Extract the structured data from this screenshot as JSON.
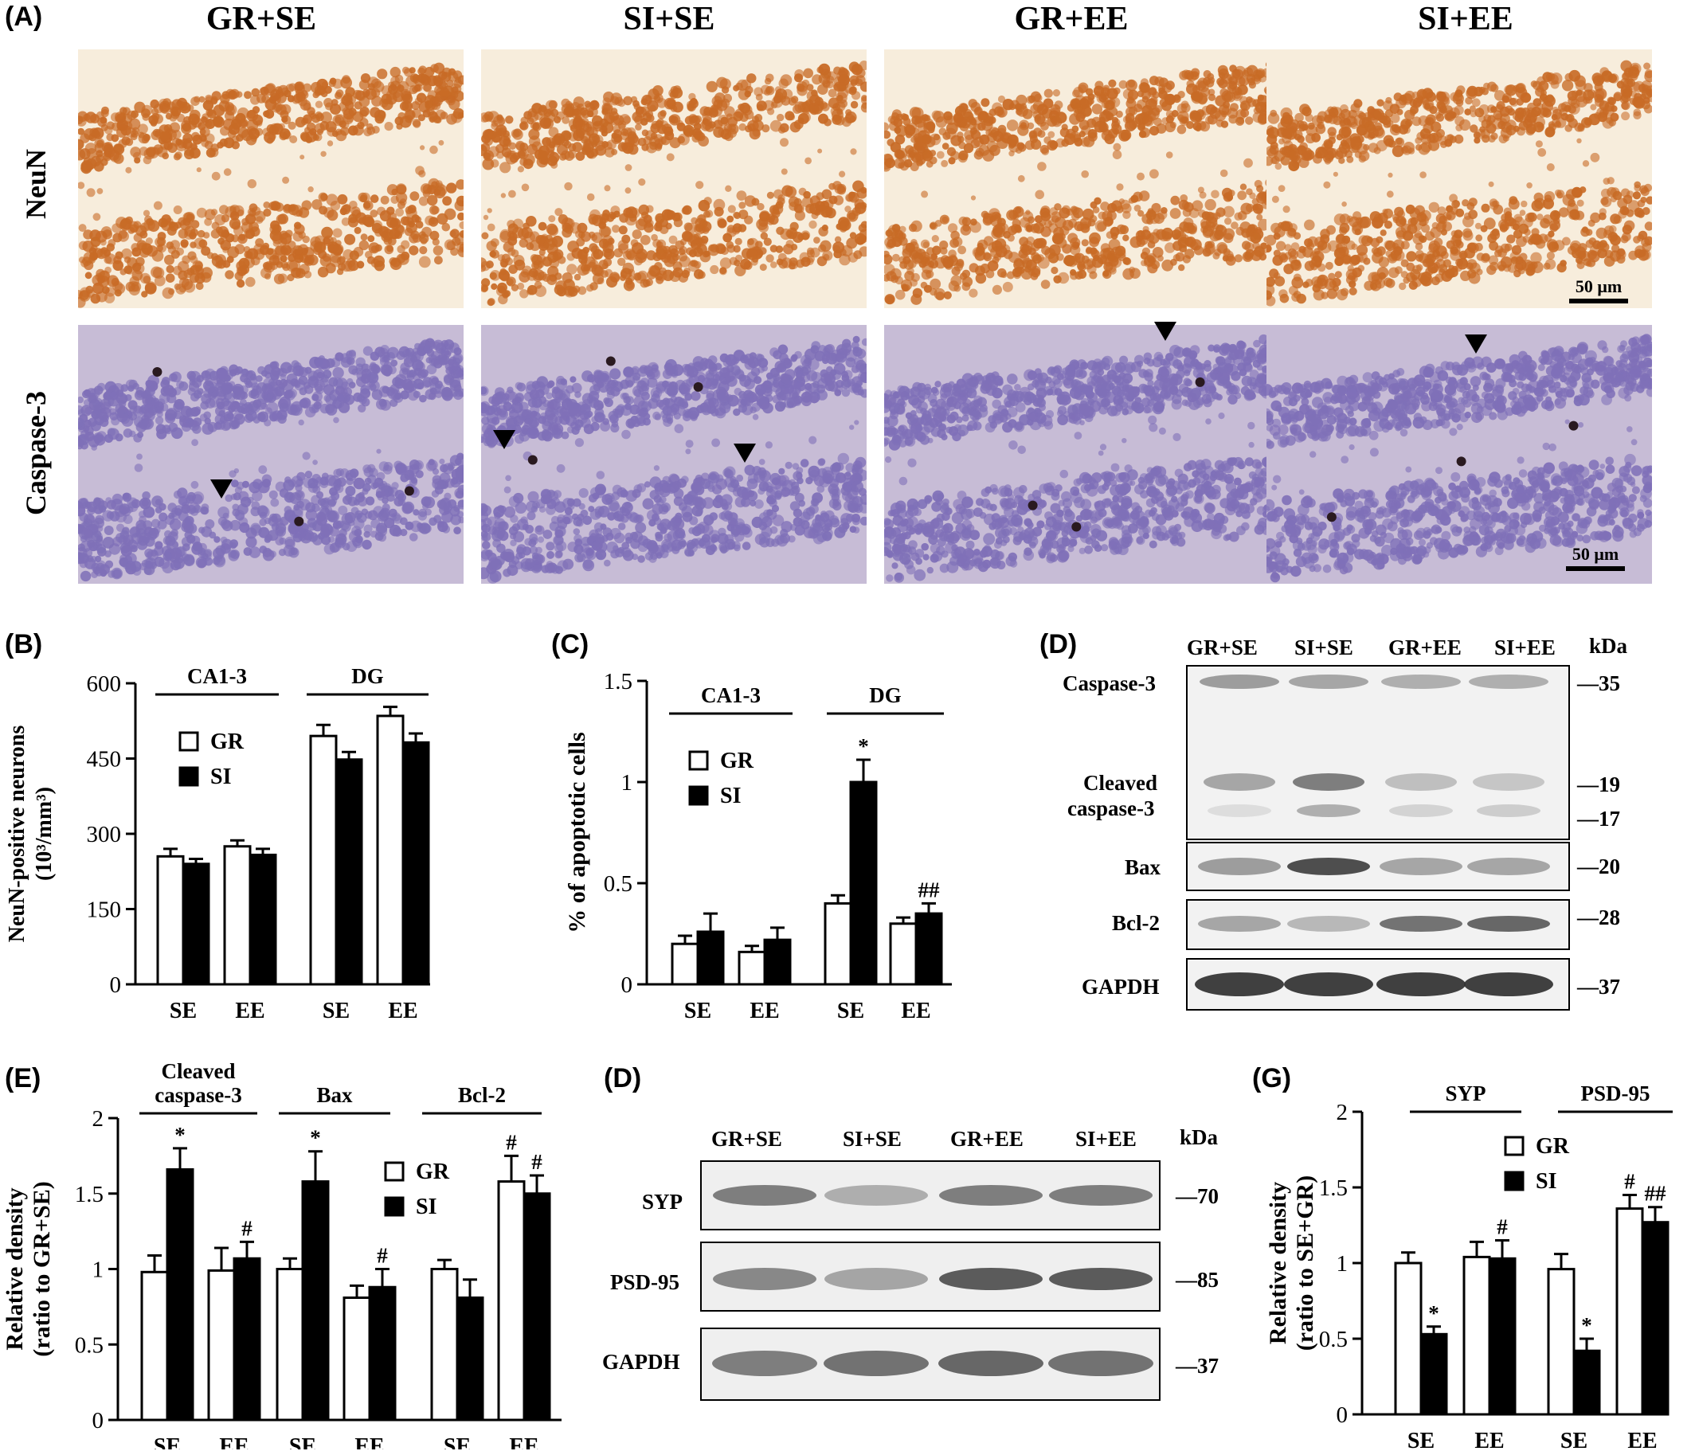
{
  "panels": {
    "a": {
      "label": "(A)",
      "columns": [
        "GR+SE",
        "SI+SE",
        "GR+EE",
        "SI+EE"
      ],
      "rows": [
        "NeuN",
        "Caspase-3"
      ],
      "scale_bar": "50 μm",
      "colors": {
        "neun_bg": "#f7eddc",
        "neun_cell": "#c86b26",
        "casp_bg": "#c7bcd6",
        "casp_cell": "#7f70b8",
        "casp_dark": "#2a1a20"
      }
    },
    "b": {
      "label": "(B)"
    },
    "c": {
      "label": "(C)"
    },
    "d1": {
      "label": "(D)"
    },
    "e": {
      "label": "(E)"
    },
    "d2": {
      "label": "(D)"
    },
    "g": {
      "label": "(G)"
    }
  },
  "chart_data": [
    {
      "id": "b",
      "type": "bar",
      "ylabel_line1": "NeuN-positive neurons",
      "ylabel_line2": "(10³/mm³)",
      "ylim": [
        0,
        600
      ],
      "yticks": [
        "0",
        "150",
        "300",
        "450",
        "600"
      ],
      "yticks_values": [
        0,
        150,
        300,
        450,
        600
      ],
      "groups": [
        "CA1-3",
        "DG"
      ],
      "categories": [
        "SE",
        "EE",
        "SE",
        "EE"
      ],
      "legend": [
        "GR",
        "SI"
      ],
      "series": [
        {
          "name": "GR",
          "values": [
            255,
            275,
            495,
            535
          ],
          "errors": [
            15,
            12,
            22,
            18
          ]
        },
        {
          "name": "SI",
          "values": [
            240,
            258,
            448,
            482
          ],
          "errors": [
            10,
            12,
            15,
            18
          ]
        }
      ],
      "annotations": {
        "GR": [
          "",
          "",
          "",
          ""
        ],
        "SI": [
          "",
          "",
          "",
          ""
        ]
      }
    },
    {
      "id": "c",
      "type": "bar",
      "ylabel": "% of apoptotic cells",
      "ylim": [
        0,
        1.5
      ],
      "yticks": [
        "0",
        "0.5",
        "1",
        "1.5"
      ],
      "yticks_values": [
        0,
        0.5,
        1,
        1.5
      ],
      "groups": [
        "CA1-3",
        "DG"
      ],
      "categories": [
        "SE",
        "EE",
        "SE",
        "EE"
      ],
      "legend": [
        "GR",
        "SI"
      ],
      "series": [
        {
          "name": "GR",
          "values": [
            0.2,
            0.16,
            0.4,
            0.3
          ],
          "errors": [
            0.04,
            0.03,
            0.04,
            0.03
          ]
        },
        {
          "name": "SI",
          "values": [
            0.26,
            0.22,
            1.0,
            0.35
          ],
          "errors": [
            0.09,
            0.06,
            0.11,
            0.05
          ]
        }
      ],
      "annotations": {
        "GR": [
          "",
          "",
          "",
          ""
        ],
        "SI": [
          "",
          "",
          "*",
          "##"
        ]
      }
    },
    {
      "id": "e",
      "type": "bar",
      "ylabel_line1": "Relative density",
      "ylabel_line2": "(ratio to GR+SE)",
      "ylim": [
        0,
        2
      ],
      "yticks": [
        "0",
        "0.5",
        "1",
        "1.5",
        "2"
      ],
      "yticks_values": [
        0,
        0.5,
        1,
        1.5,
        2
      ],
      "groups": [
        "Cleaved|caspase-3",
        "Bax",
        "Bcl-2"
      ],
      "categories": [
        "SE",
        "EE",
        "SE",
        "EE",
        "SE",
        "EE"
      ],
      "legend": [
        "GR",
        "SI"
      ],
      "series": [
        {
          "name": "GR",
          "values": [
            0.98,
            0.99,
            1.0,
            0.81,
            1.0,
            1.58
          ],
          "errors": [
            0.11,
            0.15,
            0.07,
            0.08,
            0.06,
            0.17
          ]
        },
        {
          "name": "SI",
          "values": [
            1.66,
            1.07,
            1.58,
            0.88,
            0.81,
            1.5
          ],
          "errors": [
            0.14,
            0.11,
            0.2,
            0.12,
            0.12,
            0.12
          ]
        }
      ],
      "annotations": {
        "GR": [
          "",
          "",
          "",
          "",
          "",
          "#"
        ],
        "SI": [
          "*",
          "#",
          "*",
          "#",
          "",
          "#"
        ]
      }
    },
    {
      "id": "g",
      "type": "bar",
      "ylabel_line1": "Relative density",
      "ylabel_line2": "(ratio to SE+GR)",
      "ylim": [
        0,
        2
      ],
      "yticks": [
        "0",
        "0.5",
        "1",
        "1.5",
        "2"
      ],
      "yticks_values": [
        0,
        0.5,
        1,
        1.5,
        2
      ],
      "groups": [
        "SYP",
        "PSD-95"
      ],
      "categories": [
        "SE",
        "EE",
        "SE",
        "EE"
      ],
      "legend": [
        "GR",
        "SI"
      ],
      "series": [
        {
          "name": "GR",
          "values": [
            1.0,
            1.04,
            0.96,
            1.36
          ],
          "errors": [
            0.07,
            0.1,
            0.1,
            0.09
          ]
        },
        {
          "name": "SI",
          "values": [
            0.53,
            1.03,
            0.42,
            1.27
          ],
          "errors": [
            0.05,
            0.12,
            0.08,
            0.1
          ]
        }
      ],
      "annotations": {
        "GR": [
          "",
          "",
          "",
          "#"
        ],
        "SI": [
          "*",
          "#",
          "*",
          "##"
        ]
      }
    }
  ],
  "blots": {
    "d1": {
      "lanes": [
        "GR+SE",
        "SI+SE",
        "GR+EE",
        "SI+EE"
      ],
      "kda_label": "kDa",
      "labels": {
        "caspase3": "Caspase-3",
        "cleaved1": "Cleaved",
        "cleaved2": "caspase-3",
        "bax": "Bax",
        "bcl2": "Bcl-2",
        "gapdh": "GAPDH"
      },
      "markers": {
        "m35": "—35",
        "m19": "—19",
        "m17": "—17",
        "m20": "—20",
        "m28": "—28",
        "m37": "—37"
      },
      "intensity": {
        "caspase3": [
          0.55,
          0.5,
          0.45,
          0.45
        ],
        "cleaved19": [
          0.5,
          0.7,
          0.35,
          0.3
        ],
        "cleaved17": [
          0.1,
          0.45,
          0.2,
          0.25
        ],
        "bax": [
          0.55,
          0.9,
          0.5,
          0.5
        ],
        "bcl2": [
          0.5,
          0.4,
          0.75,
          0.8
        ],
        "gapdh": [
          0.95,
          0.95,
          0.95,
          0.95
        ]
      }
    },
    "d2": {
      "lanes": [
        "GR+SE",
        "SI+SE",
        "GR+EE",
        "SI+EE"
      ],
      "kda_label": "kDa",
      "labels": {
        "syp": "SYP",
        "psd95": "PSD-95",
        "gapdh": "GAPDH"
      },
      "markers": {
        "m70": "—70",
        "m85": "—85",
        "m37": "—37"
      },
      "intensity": {
        "syp": [
          0.7,
          0.45,
          0.7,
          0.7
        ],
        "psd95": [
          0.65,
          0.5,
          0.85,
          0.85
        ],
        "gapdh": [
          0.7,
          0.75,
          0.8,
          0.75
        ]
      }
    }
  }
}
